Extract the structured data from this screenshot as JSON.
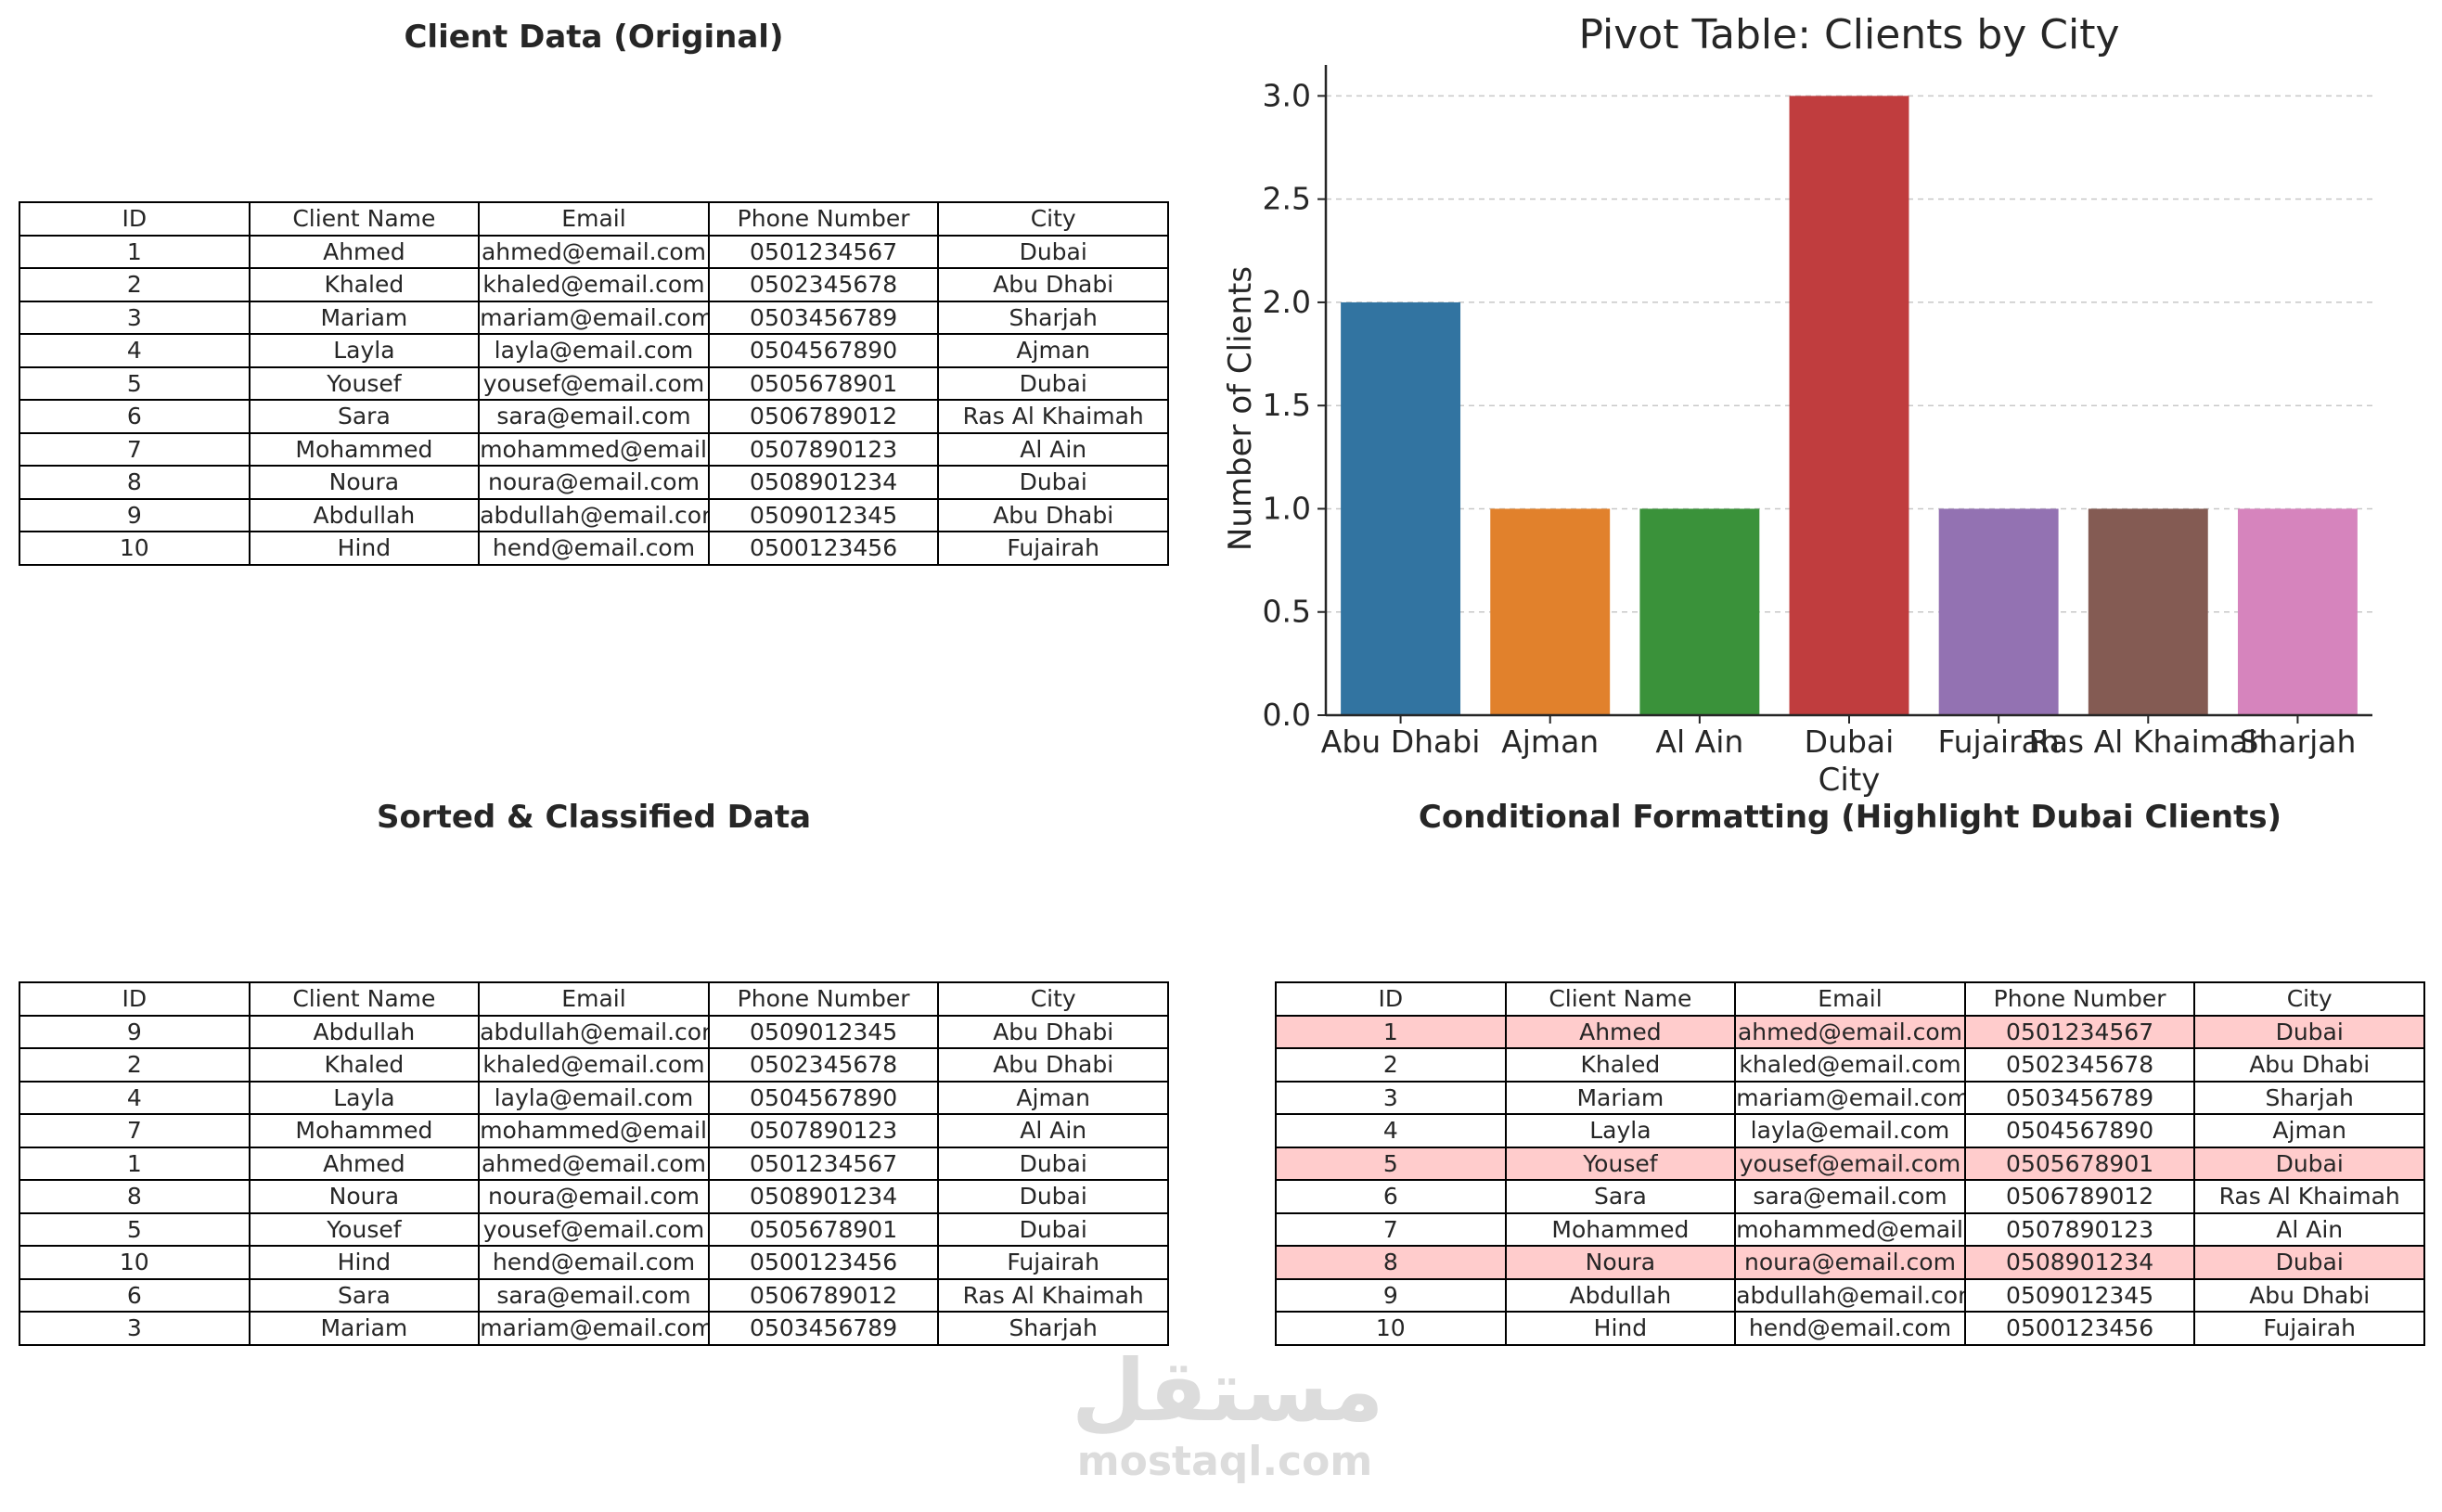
{
  "panels": {
    "original_title": "Client Data (Original)",
    "sorted_title": "Sorted & Classified Data",
    "conditional_title": "Conditional Formatting (Highlight Dubai Clients)"
  },
  "table_columns": [
    "ID",
    "Client Name",
    "Email",
    "Phone Number",
    "City"
  ],
  "original_rows": [
    [
      "1",
      "Ahmed",
      "ahmed@email.com",
      "0501234567",
      "Dubai"
    ],
    [
      "2",
      "Khaled",
      "khaled@email.com",
      "0502345678",
      "Abu Dhabi"
    ],
    [
      "3",
      "Mariam",
      "mariam@email.com",
      "0503456789",
      "Sharjah"
    ],
    [
      "4",
      "Layla",
      "layla@email.com",
      "0504567890",
      "Ajman"
    ],
    [
      "5",
      "Yousef",
      "yousef@email.com",
      "0505678901",
      "Dubai"
    ],
    [
      "6",
      "Sara",
      "sara@email.com",
      "0506789012",
      "Ras Al Khaimah"
    ],
    [
      "7",
      "Mohammed",
      "mohammed@email.com",
      "0507890123",
      "Al Ain"
    ],
    [
      "8",
      "Noura",
      "noura@email.com",
      "0508901234",
      "Dubai"
    ],
    [
      "9",
      "Abdullah",
      "abdullah@email.com",
      "0509012345",
      "Abu Dhabi"
    ],
    [
      "10",
      "Hind",
      "hend@email.com",
      "0500123456",
      "Fujairah"
    ]
  ],
  "sorted_rows": [
    [
      "9",
      "Abdullah",
      "abdullah@email.com",
      "0509012345",
      "Abu Dhabi"
    ],
    [
      "2",
      "Khaled",
      "khaled@email.com",
      "0502345678",
      "Abu Dhabi"
    ],
    [
      "4",
      "Layla",
      "layla@email.com",
      "0504567890",
      "Ajman"
    ],
    [
      "7",
      "Mohammed",
      "mohammed@email.com",
      "0507890123",
      "Al Ain"
    ],
    [
      "1",
      "Ahmed",
      "ahmed@email.com",
      "0501234567",
      "Dubai"
    ],
    [
      "8",
      "Noura",
      "noura@email.com",
      "0508901234",
      "Dubai"
    ],
    [
      "5",
      "Yousef",
      "yousef@email.com",
      "0505678901",
      "Dubai"
    ],
    [
      "10",
      "Hind",
      "hend@email.com",
      "0500123456",
      "Fujairah"
    ],
    [
      "6",
      "Sara",
      "sara@email.com",
      "0506789012",
      "Ras Al Khaimah"
    ],
    [
      "3",
      "Mariam",
      "mariam@email.com",
      "0503456789",
      "Sharjah"
    ]
  ],
  "conditional": {
    "highlight_city": "Dubai",
    "highlight_color": "#ffcccc"
  },
  "chart_data": {
    "type": "bar",
    "title": "Pivot Table: Clients by City",
    "xlabel": "City",
    "ylabel": "Number of Clients",
    "categories": [
      "Abu Dhabi",
      "Ajman",
      "Al Ain",
      "Dubai",
      "Fujairah",
      "Ras Al Khaimah",
      "Sharjah"
    ],
    "values": [
      2,
      1,
      1,
      3,
      1,
      1,
      1
    ],
    "colors": [
      "#3274a1",
      "#e1812c",
      "#3a923a",
      "#c03d3e",
      "#9372b2",
      "#845b53",
      "#d684bd"
    ],
    "ylim": [
      0,
      3.15
    ],
    "yticks": [
      "0.0",
      "0.5",
      "1.0",
      "1.5",
      "2.0",
      "2.5",
      "3.0"
    ],
    "grid": "y-dashed",
    "legend": "none"
  },
  "watermark": {
    "logo_text": "مستقل",
    "site_text": "mostaql.com"
  }
}
